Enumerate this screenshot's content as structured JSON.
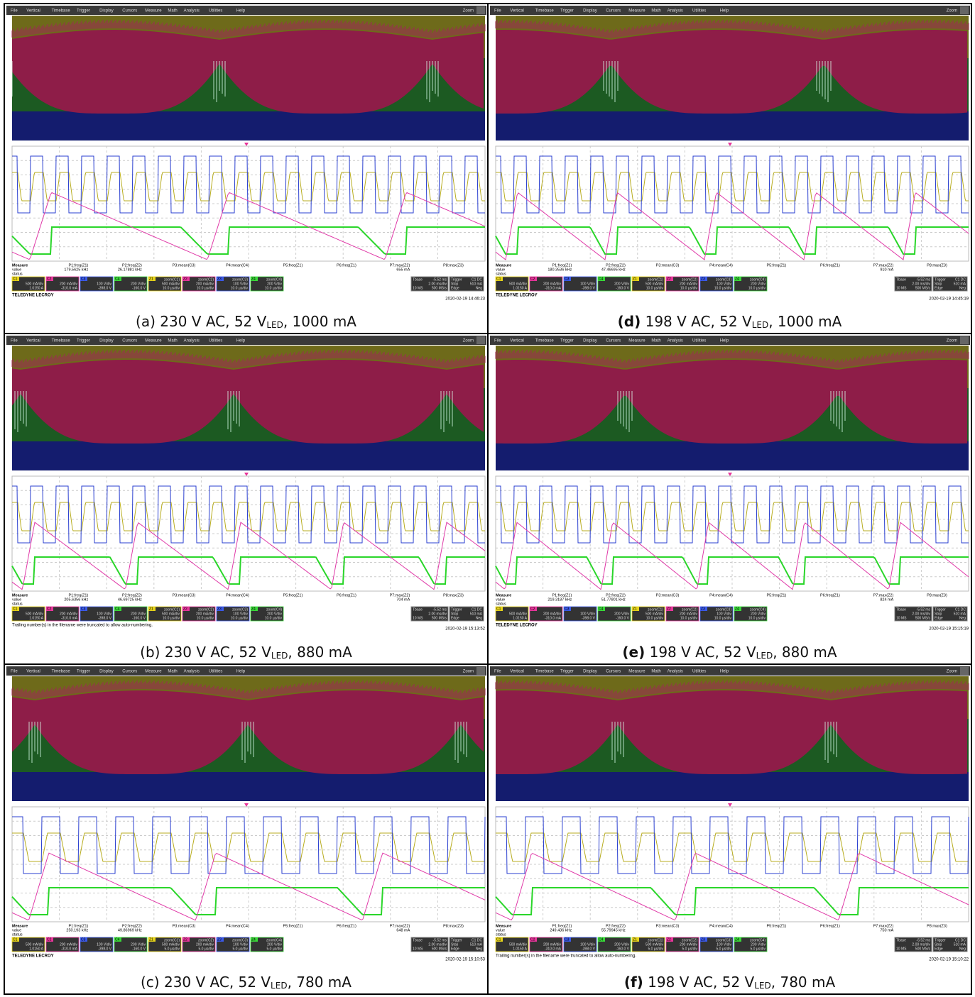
{
  "scope": {
    "menu": [
      "File",
      "Vertical",
      "Timebase",
      "Trigger",
      "Display",
      "Cursors",
      "Measure",
      "Math",
      "Analysis",
      "Utilities",
      "Help"
    ],
    "zoom_button": "Zoom",
    "measure_rows": [
      "Measure",
      "value",
      "status"
    ],
    "params": [
      "P1:freq(Z1)",
      "P2:freq(Z2)",
      "P3:mean(C3)",
      "P4:mean(C4)",
      "P5:freq(Z1)",
      "P6:freq(Z1)",
      "P7:max(Z2)",
      "P8:max(Z3)"
    ],
    "channels": [
      {
        "name": "C1",
        "scale": "500 mA/div",
        "offset": "1.0150 A"
      },
      {
        "name": "C2",
        "scale": "200 mA/div",
        "offset": "-310.0 mA"
      },
      {
        "name": "C3",
        "scale": "100 V/div",
        "offset": "-398.0 V"
      },
      {
        "name": "C4",
        "scale": "200 V/div",
        "offset": "-160.0 V"
      }
    ],
    "zooms": [
      {
        "name": "Z1",
        "source": "zoom(C1)",
        "scale": "500 mA/div"
      },
      {
        "name": "Z2",
        "source": "zoom(C2)",
        "scale": "200 mA/div"
      },
      {
        "name": "Z3",
        "source": "zoom(C3)",
        "scale": "100 V/div"
      },
      {
        "name": "Z4",
        "source": "zoom(C4)",
        "scale": "200 V/div"
      }
    ],
    "timebase": {
      "label": "Tbase",
      "delay": "-5.52 ms",
      "scale": "2.00 ms/div",
      "samples": "10 MS",
      "rate": "500 MS/s"
    },
    "trigger": {
      "label": "Trigger",
      "source": "C1 DC",
      "mode": "Stop",
      "level": "510 mA",
      "type": "Edge",
      "slope": "Neg"
    }
  },
  "panels": [
    {
      "caption": {
        "label": "(a)",
        "text": "230 V AC, 52 V",
        "sub": "LED",
        "rest": ", 1000 mA"
      },
      "bold": false,
      "p1": "179.5625 kHz",
      "p2": "26.17881 kHz",
      "p7": "655 mA",
      "zoom_timebase": "10.0 µs/div",
      "footer": "TELEDYNE LECROY",
      "timestamp": "2020-02-19 14:46:23"
    },
    {
      "caption": {
        "label": "(d)",
        "text": "198 V AC, 52 V",
        "sub": "LED",
        "rest": ", 1000 mA"
      },
      "bold": true,
      "p1": "180.3536 kHz",
      "p2": "47.46695 kHz",
      "p7": "910 mA",
      "zoom_timebase": "10.0 µs/div",
      "footer": "TELEDYNE LECROY",
      "timestamp": "2020-02-19 14:45:19"
    },
    {
      "caption": {
        "label": "(b)",
        "text": "230 V AC, 52 V",
        "sub": "LED",
        "rest": ", 880 mA"
      },
      "bold": false,
      "p1": "205.6356 kHz",
      "p2": "46.69725 kHz",
      "p7": "704 mA",
      "zoom_timebase": "10.0 µs/div",
      "footer": "Trailing number(s) in the filename were truncated to allow auto-numbering.",
      "timestamp": "2020-02-19 15:13:52"
    },
    {
      "caption": {
        "label": "(e)",
        "text": "198 V AC, 52 V",
        "sub": "LED",
        "rest": ", 880 mA"
      },
      "bold": true,
      "p1": "219.3187 kHz",
      "p2": "51.77801 kHz",
      "p7": "824 mA",
      "zoom_timebase": "10.0 µs/div",
      "footer": "TELEDYNE LECROY",
      "timestamp": "2020-02-19 15:15:19"
    },
    {
      "caption": {
        "label": "(c)",
        "text": "230 V AC, 52 V",
        "sub": "LED",
        "rest": ", 780 mA"
      },
      "bold": false,
      "p1": "250.193 kHz",
      "p2": "49.86969 kHz",
      "p7": "648 mA",
      "zoom_timebase": "5.0 µs/div",
      "footer": "TELEDYNE LECROY",
      "timestamp": "2020-02-19 15:10:53"
    },
    {
      "caption": {
        "label": "(f)",
        "text": "198 V AC, 52 V",
        "sub": "LED",
        "rest": ", 780 mA"
      },
      "bold": true,
      "p1": "249.436 kHz",
      "p2": "55.79945 kHz",
      "p7": "750 mA",
      "zoom_timebase": "5.0 µs/div",
      "footer": "Trailing number(s) in the filename were truncated to allow auto-numbering.",
      "timestamp": "2020-02-19 15:10:22"
    }
  ]
}
